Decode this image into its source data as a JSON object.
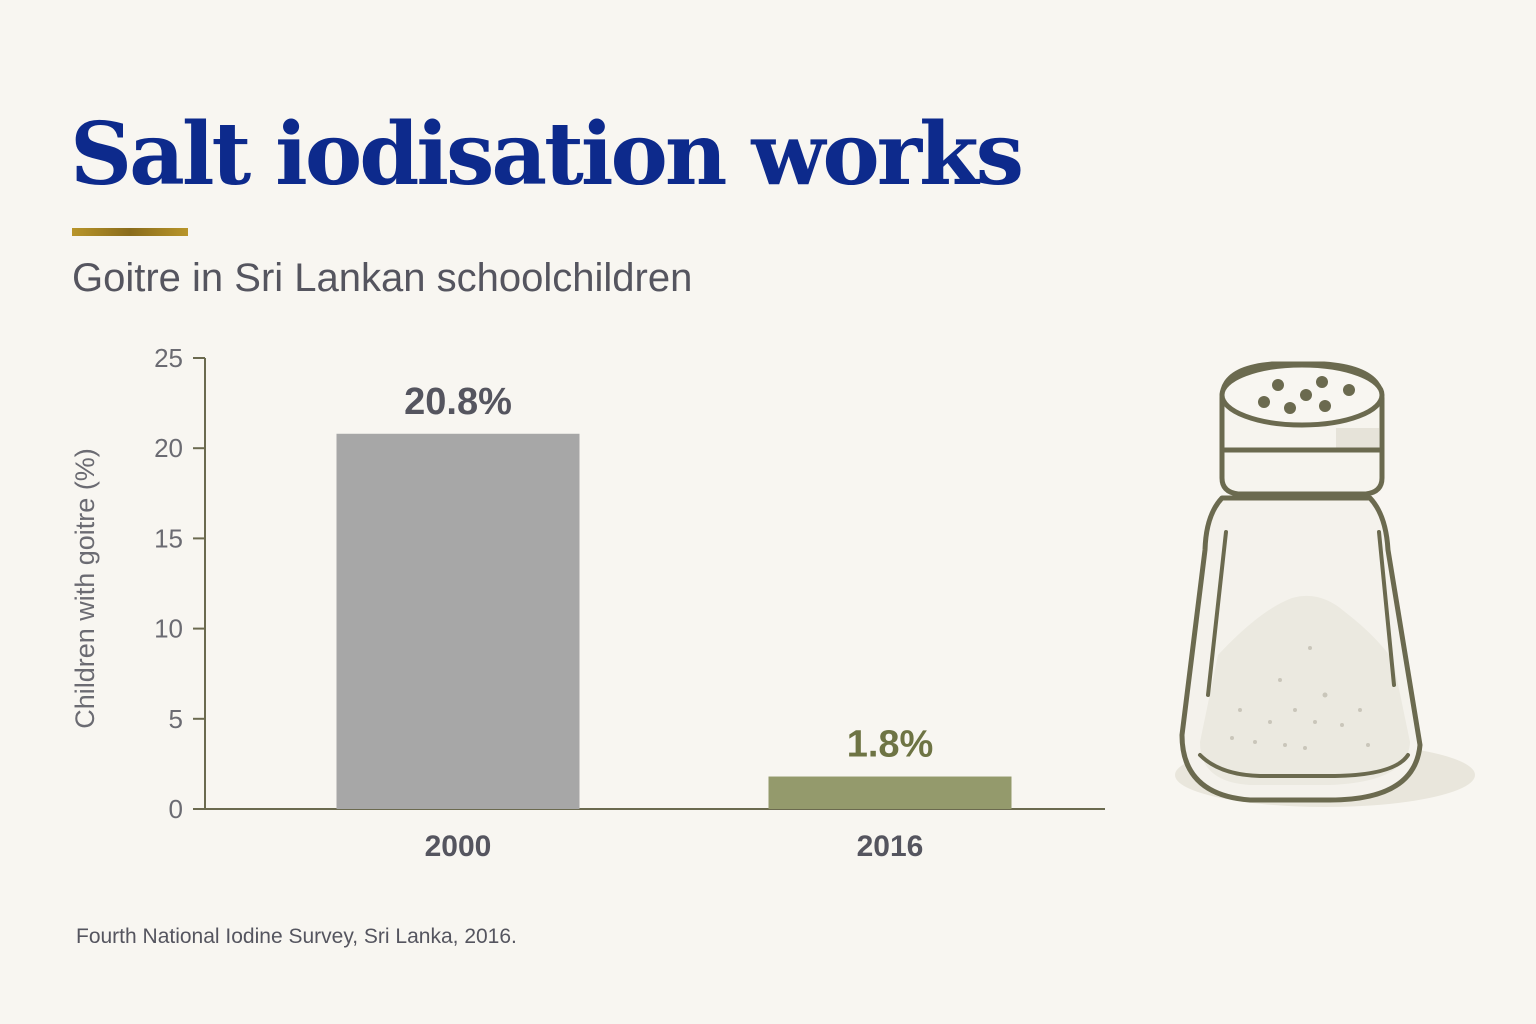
{
  "header": {
    "title": "Salt iodisation works",
    "subtitle": "Goitre in Sri Lankan schoolchildren"
  },
  "footer": {
    "source": "Fourth National Iodine Survey, Sri Lanka, 2016."
  },
  "colors": {
    "title": "#0d2a8c",
    "accent_rule": "#b8952a",
    "subtitle": "#55555f",
    "axis": "#6b6a4f",
    "tick_text": "#6b6b72",
    "category_text": "#55555f",
    "bar_2000": "#a7a7a7",
    "bar_2016": "#949a6c",
    "label_2000": "#55555f",
    "label_2016": "#6e7444",
    "source_text": "#55555f",
    "shaker_outline": "#6b6a4f"
  },
  "illustration": {
    "icon": "salt-shaker-icon"
  },
  "chart_data": {
    "type": "bar",
    "categories": [
      "2000",
      "2016"
    ],
    "values": [
      20.8,
      1.8
    ],
    "value_labels": [
      "20.8%",
      "1.8%"
    ],
    "title": "Salt iodisation works",
    "subtitle": "Goitre in Sri Lankan schoolchildren",
    "xlabel": "",
    "ylabel": "Children with goitre (%)",
    "ylim": [
      0,
      25
    ],
    "yticks": [
      0,
      5,
      10,
      15,
      20,
      25
    ],
    "grid": false,
    "legend": "none"
  }
}
